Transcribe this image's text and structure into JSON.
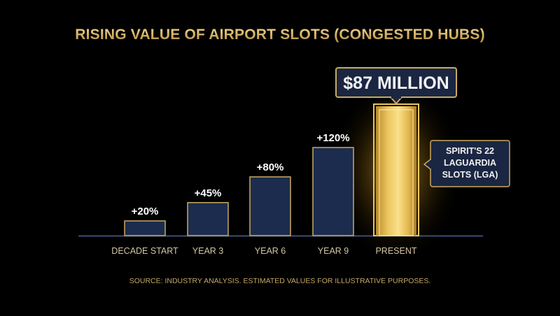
{
  "chart_data": {
    "type": "bar",
    "title": "RISING VALUE OF AIRPORT SLOTS (CONGESTED HUBS)",
    "xlabel": "",
    "ylabel": "",
    "categories": [
      "DECADE START",
      "YEAR 3",
      "YEAR 6",
      "YEAR 9",
      "PRESENT"
    ],
    "values": [
      20,
      45,
      80,
      120,
      87
    ],
    "data_labels": [
      "+20%",
      "+45%",
      "+80%",
      "+120%",
      ""
    ],
    "highlight": {
      "category": "PRESENT",
      "value_label": "$87 MILLION",
      "annotation": [
        "SPIRIT'S 22",
        "LAGUARDIA",
        "SLOTS (LGA)"
      ]
    },
    "source": "SOURCE: INDUSTRY ANALYSIS. ESTIMATED VALUES FOR ILLUSTRATIVE PURPOSES.",
    "grid": false,
    "legend": "none",
    "colors": {
      "background": "#000000",
      "bar_fill": "#1c2c4e",
      "bar_border": "#c9a95e",
      "highlight_fill": "#e7c157",
      "gold_text": "#d9b76a",
      "label_text": "#ffffff",
      "tick_text": "#d4c6a6"
    }
  }
}
